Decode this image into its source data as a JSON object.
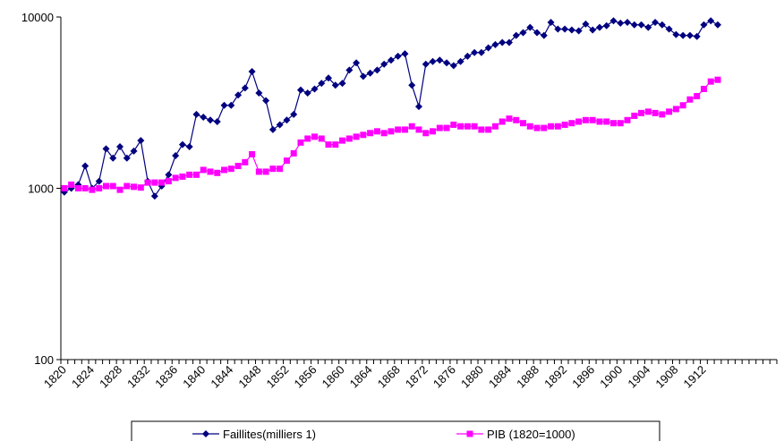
{
  "chart_data": {
    "type": "line",
    "log_scale": true,
    "categories": [
      "1820",
      null,
      null,
      null,
      "1824",
      null,
      null,
      null,
      "1828",
      null,
      null,
      null,
      "1832",
      null,
      null,
      null,
      "1836",
      null,
      null,
      null,
      "1840",
      null,
      null,
      null,
      "1844",
      null,
      null,
      null,
      "1848",
      null,
      null,
      null,
      "1852",
      null,
      null,
      null,
      "1856",
      null,
      null,
      null,
      "1860",
      null,
      null,
      null,
      "1864",
      null,
      null,
      null,
      "1868",
      null,
      null,
      null,
      "1872",
      null,
      null,
      null,
      "1876",
      null,
      null,
      null,
      "1880",
      null,
      null,
      null,
      "1884",
      null,
      null,
      null,
      "1888",
      null,
      null,
      null,
      "1892",
      null,
      null,
      null,
      "1896",
      null,
      null,
      null,
      "1900",
      null,
      null,
      null,
      "1904",
      null,
      null,
      null,
      "1908",
      null,
      null,
      null,
      "1912",
      null,
      null,
      null,
      null,
      null,
      null,
      null,
      null,
      null,
      null
    ],
    "series": [
      {
        "name": "Faillites(milliers 1)",
        "color": "#000080",
        "marker": "diamond",
        "values": [
          950,
          1000,
          1050,
          1350,
          1000,
          1100,
          1700,
          1500,
          1750,
          1500,
          1650,
          1900,
          1100,
          900,
          1030,
          1200,
          1550,
          1800,
          1750,
          2700,
          2600,
          2500,
          2450,
          3050,
          3050,
          3500,
          3850,
          4800,
          3600,
          3250,
          2200,
          2350,
          2500,
          2700,
          3750,
          3600,
          3800,
          4100,
          4400,
          4000,
          4100,
          4900,
          5400,
          4500,
          4700,
          4900,
          5300,
          5600,
          5900,
          6100,
          4000,
          3000,
          5300,
          5500,
          5600,
          5400,
          5200,
          5500,
          5900,
          6200,
          6200,
          6600,
          6900,
          7100,
          7100,
          7800,
          8100,
          8700,
          8100,
          7800,
          9300,
          8500,
          8500,
          8400,
          8300,
          9100,
          8400,
          8700,
          8900,
          9500,
          9200,
          9300,
          9000,
          9000,
          8700,
          9300,
          9000,
          8500,
          7900,
          7800,
          7800,
          7700,
          9000,
          9500,
          9000,
          null,
          null,
          null,
          null,
          null,
          null,
          null,
          null
        ]
      },
      {
        "name": "PIB (1820=1000)",
        "color": "#ff00ff",
        "marker": "square",
        "values": [
          1000,
          1050,
          1000,
          1000,
          980,
          1000,
          1030,
          1030,
          980,
          1030,
          1020,
          1010,
          1080,
          1080,
          1080,
          1100,
          1150,
          1170,
          1200,
          1200,
          1280,
          1250,
          1230,
          1280,
          1300,
          1350,
          1420,
          1580,
          1250,
          1250,
          1300,
          1300,
          1450,
          1600,
          1850,
          1950,
          2000,
          1950,
          1800,
          1800,
          1900,
          1950,
          2000,
          2050,
          2100,
          2150,
          2100,
          2150,
          2200,
          2200,
          2300,
          2200,
          2100,
          2150,
          2250,
          2250,
          2350,
          2300,
          2300,
          2300,
          2200,
          2200,
          2300,
          2450,
          2550,
          2500,
          2400,
          2300,
          2250,
          2250,
          2300,
          2300,
          2350,
          2400,
          2450,
          2500,
          2500,
          2450,
          2450,
          2400,
          2400,
          2500,
          2650,
          2750,
          2800,
          2750,
          2700,
          2800,
          2900,
          3050,
          3300,
          3450,
          3800,
          4200,
          4300,
          null,
          null,
          null,
          null,
          null,
          null,
          null,
          null
        ]
      }
    ],
    "ylim": [
      100,
      10000
    ],
    "yticks": [
      100,
      1000,
      10000
    ],
    "legend": "bottom"
  }
}
